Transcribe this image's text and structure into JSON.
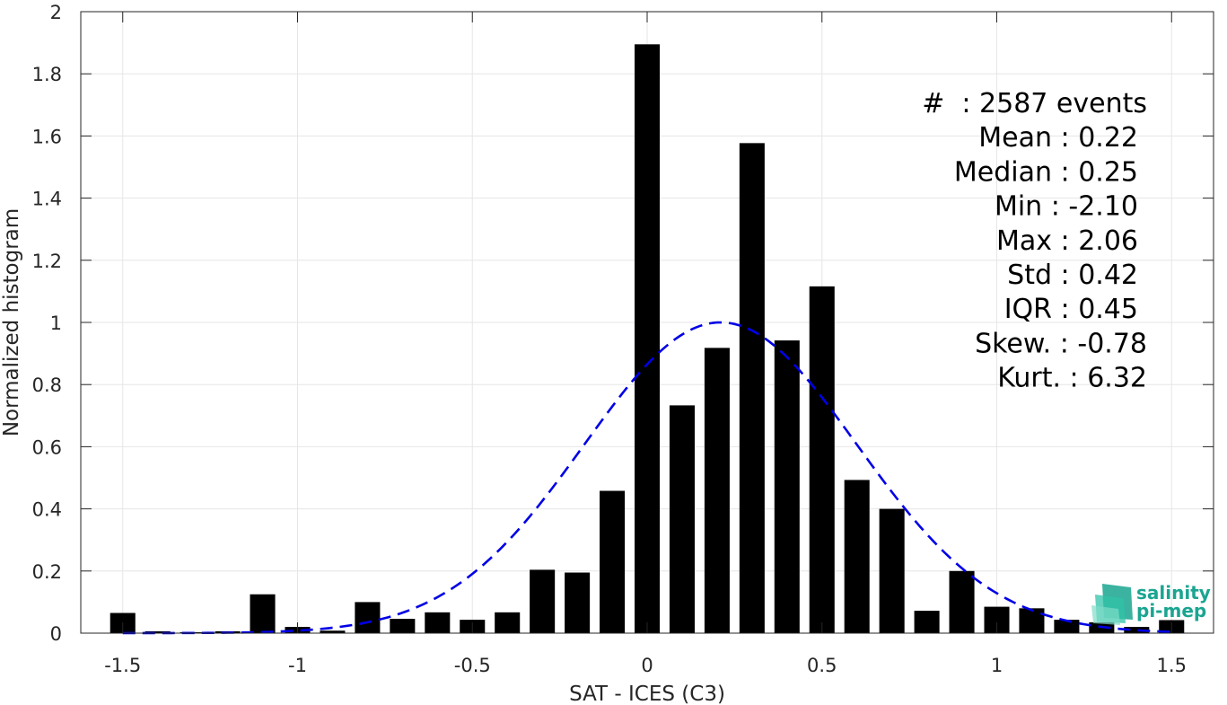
{
  "chart_data": {
    "type": "bar",
    "xlabel": "SAT - ICES (C3)",
    "ylabel": "Normalized histogram",
    "xlim": [
      -1.62,
      1.62
    ],
    "ylim": [
      0,
      2
    ],
    "grid": true,
    "x_ticks": [
      -1.5,
      -1,
      -0.5,
      0,
      0.5,
      1,
      1.5
    ],
    "x_tick_labels": [
      "-1.5",
      "-1",
      "-0.5",
      "0",
      "0.5",
      "1",
      "1.5"
    ],
    "y_ticks": [
      0,
      0.2,
      0.4,
      0.6,
      0.8,
      1,
      1.2,
      1.4,
      1.6,
      1.8,
      2
    ],
    "y_tick_labels": [
      "0",
      "0.2",
      "0.4",
      "0.6",
      "0.8",
      "1",
      "1.2",
      "1.4",
      "1.6",
      "1.8",
      "2"
    ],
    "bar_color": "#000000",
    "bars": {
      "x": [
        -1.5,
        -1.4,
        -1.3,
        -1.2,
        -1.1,
        -1.0,
        -0.9,
        -0.8,
        -0.7,
        -0.6,
        -0.5,
        -0.4,
        -0.3,
        -0.2,
        -0.1,
        0.0,
        0.1,
        0.2,
        0.3,
        0.4,
        0.5,
        0.6,
        0.7,
        0.8,
        0.9,
        1.0,
        1.1,
        1.2,
        1.3,
        1.4,
        1.5
      ],
      "values": [
        0.065,
        0.006,
        0.003,
        0.006,
        0.125,
        0.02,
        0.008,
        0.1,
        0.046,
        0.067,
        0.043,
        0.067,
        0.204,
        0.195,
        0.458,
        1.895,
        0.733,
        0.918,
        1.577,
        0.942,
        1.116,
        0.493,
        0.4,
        0.072,
        0.2,
        0.085,
        0.08,
        0.043,
        0.035,
        0.02,
        0.042
      ]
    },
    "fit_curve": {
      "type": "gaussian",
      "style": "dashed",
      "color": "#0000e6",
      "mean": 0.21,
      "std": 0.39,
      "peak": 1.0,
      "x_range": [
        -1.5,
        1.5
      ]
    }
  },
  "stats": {
    "lines": [
      "#  : 2587 events",
      "Mean : 0.22",
      "Median : 0.25",
      "Min : -2.10",
      "Max : 2.06",
      "Std : 0.42",
      "IQR : 0.45",
      "Skew. : -0.78",
      "Kurt. : 6.32"
    ]
  },
  "logo": {
    "line1": "salinity",
    "line2": "pi-mep",
    "color": "#1aa591"
  }
}
